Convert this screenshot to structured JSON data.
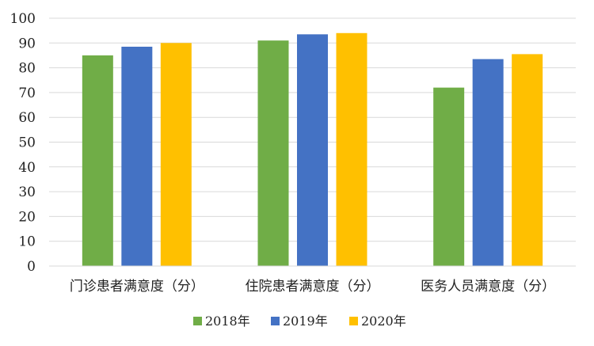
{
  "chart_data": {
    "type": "bar",
    "categories": [
      "门诊患者满意度（分）",
      "住院患者满意度（分）",
      "医务人员满意度（分）"
    ],
    "series": [
      {
        "name": "2018年",
        "values": [
          85,
          91,
          72
        ],
        "color": "#70AD47"
      },
      {
        "name": "2019年",
        "values": [
          88.5,
          93.5,
          83.5
        ],
        "color": "#4472C4"
      },
      {
        "name": "2020年",
        "values": [
          90,
          94,
          85.5
        ],
        "color": "#FFC000"
      }
    ],
    "ylim": [
      0,
      100
    ],
    "yticks": [
      0,
      10,
      20,
      30,
      40,
      50,
      60,
      70,
      80,
      90,
      100
    ],
    "grid": true,
    "legend_position": "bottom"
  }
}
